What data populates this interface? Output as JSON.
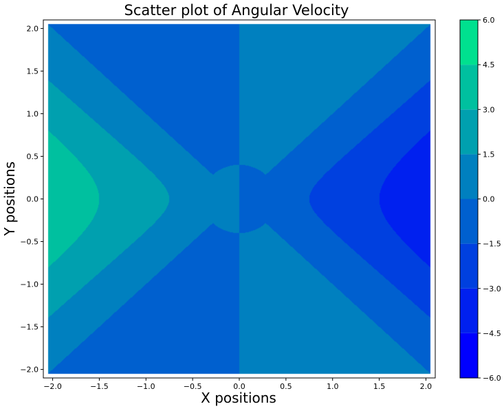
{
  "chart_data": {
    "type": "contourf",
    "title": "Scatter plot of Angular Velocity",
    "xlabel": "X positions",
    "ylabel": "Y positions",
    "xlim": [
      -2.1,
      2.1
    ],
    "ylim": [
      -2.1,
      2.1
    ],
    "x_ticks": [
      -2.0,
      -1.5,
      -1.0,
      -0.5,
      0.0,
      0.5,
      1.0,
      1.5,
      2.0
    ],
    "x_tick_labels": [
      "−2.0",
      "−1.5",
      "−1.0",
      "−0.5",
      "0.0",
      "0.5",
      "1.0",
      "1.5",
      "2.0"
    ],
    "y_ticks": [
      2.0,
      1.5,
      1.0,
      0.5,
      0.0,
      -0.5,
      -1.0,
      -1.5,
      -2.0
    ],
    "y_tick_labels": [
      "2.0",
      "1.5",
      "1.0",
      "0.5",
      "0.0",
      "−0.5",
      "−1.0",
      "−1.5",
      "−2.0"
    ],
    "colorbar": {
      "min": -6.0,
      "max": 6.0,
      "ticks": [
        6.0,
        4.5,
        3.0,
        1.5,
        0.0,
        -1.5,
        -3.0,
        -4.5,
        -6.0
      ],
      "tick_labels": [
        "6.0",
        "4.5",
        "3.0",
        "1.5",
        "0.0",
        "−1.5",
        "−3.0",
        "−4.5",
        "−6.0"
      ],
      "levels": [
        -6.0,
        -4.5,
        -3.0,
        -1.5,
        0.0,
        1.5,
        3.0,
        4.5,
        6.0
      ],
      "band_colors": [
        "#0000ff",
        "#0020ef",
        "#0040df",
        "#0060cf",
        "#0080bf",
        "#00a0af",
        "#00c09f",
        "#00e08f"
      ]
    },
    "colormap": "winter",
    "grid": false
  }
}
